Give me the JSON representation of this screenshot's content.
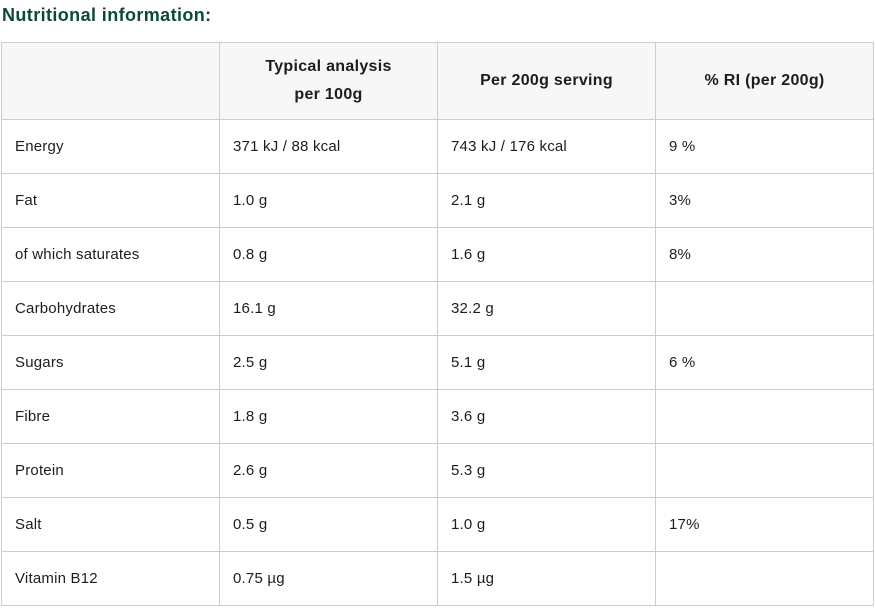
{
  "title": "Nutritional information:",
  "colors": {
    "title": "#0b4a3b",
    "header_background": "#f7f7f7",
    "border": "#cccccc",
    "text": "#1d1d1d"
  },
  "table": {
    "headers": [
      {
        "line1": "",
        "line2": ""
      },
      {
        "line1": "Typical analysis",
        "line2": "per 100g"
      },
      {
        "line1": "Per 200g serving",
        "line2": ""
      },
      {
        "line1": "% RI (per 200g)",
        "line2": ""
      }
    ],
    "rows": [
      {
        "label": "Energy",
        "per100g": "371 kJ / 88 kcal",
        "per200g": "743 kJ / 176 kcal",
        "ri": "9 %"
      },
      {
        "label": "Fat",
        "per100g": "1.0 g",
        "per200g": "2.1 g",
        "ri": "3%"
      },
      {
        "label": "of which saturates",
        "per100g": "0.8 g",
        "per200g": "1.6 g",
        "ri": "8%"
      },
      {
        "label": "Carbohydrates",
        "per100g": "16.1 g",
        "per200g": "32.2 g",
        "ri": ""
      },
      {
        "label": "Sugars",
        "per100g": "2.5 g",
        "per200g": "5.1 g",
        "ri": "6 %"
      },
      {
        "label": "Fibre",
        "per100g": "1.8 g",
        "per200g": "3.6 g",
        "ri": ""
      },
      {
        "label": "Protein",
        "per100g": "2.6 g",
        "per200g": "5.3 g",
        "ri": ""
      },
      {
        "label": "Salt",
        "per100g": "0.5 g",
        "per200g": "1.0 g",
        "ri": "17%"
      },
      {
        "label": "Vitamin B12",
        "per100g": "0.75 µg",
        "per200g": "1.5 µg",
        "ri": ""
      }
    ]
  }
}
